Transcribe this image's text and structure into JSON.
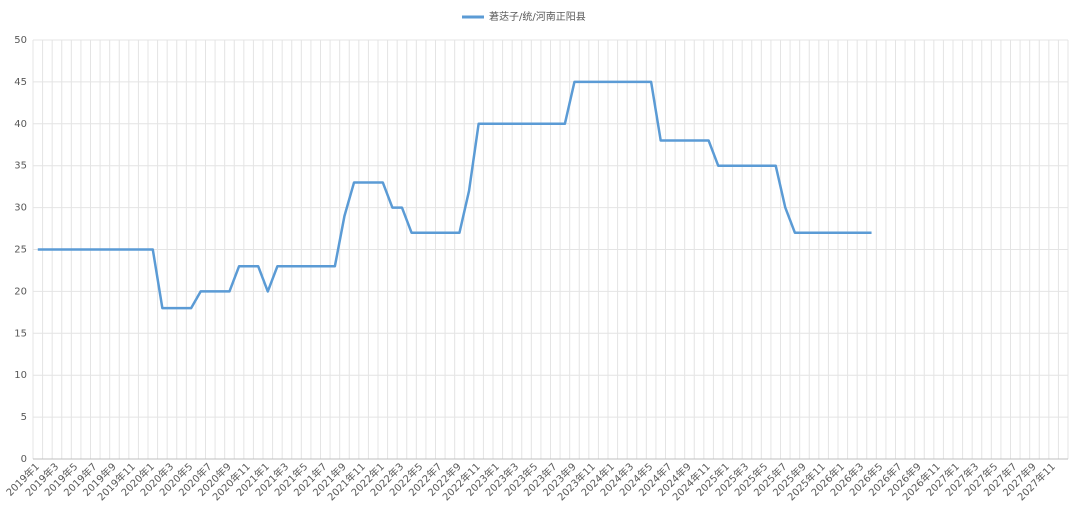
{
  "chart_data": {
    "type": "line",
    "categories": [
      "2019年1",
      null,
      "2019年3",
      null,
      "2019年5",
      null,
      "2019年7",
      null,
      "2019年9",
      null,
      "2019年11",
      null,
      "2020年1",
      null,
      "2020年3",
      null,
      "2020年5",
      null,
      "2020年7",
      null,
      "2020年9",
      null,
      "2020年11",
      null,
      "2021年1",
      null,
      "2021年3",
      null,
      "2021年5",
      null,
      "2021年7",
      null,
      "2021年9",
      null,
      "2021年11",
      null,
      "2022年1",
      null,
      "2022年3",
      null,
      "2022年5",
      null,
      "2022年7",
      null,
      "2022年9",
      null,
      "2022年11",
      null,
      "2023年1",
      null,
      "2023年3",
      null,
      "2023年5",
      null,
      "2023年7",
      null,
      "2023年9",
      null,
      "2023年11",
      null,
      "2024年1",
      null,
      "2024年3",
      null,
      "2024年5",
      null,
      "2024年7",
      null,
      "2024年9",
      null,
      "2024年11",
      null,
      "2025年1",
      null,
      "2025年3",
      null,
      "2025年5",
      null,
      "2025年7",
      null,
      "2025年9",
      null,
      "2025年11",
      null,
      "2026年1",
      null,
      "2026年3",
      null,
      "2026年5",
      null,
      "2026年7",
      null,
      "2026年9",
      null,
      "2026年11",
      null,
      "2027年1",
      null,
      "2027年3",
      null,
      "2027年5",
      null,
      "2027年7",
      null,
      "2027年9",
      null,
      "2027年11",
      null
    ],
    "series": [
      {
        "name": "莙荙子/统/河南正阳县",
        "color": "#5b9bd5",
        "values": [
          25,
          25,
          25,
          25,
          25,
          25,
          25,
          25,
          25,
          25,
          25,
          25,
          25,
          18,
          18,
          18,
          18,
          20,
          20,
          20,
          20,
          23,
          23,
          23,
          20,
          23,
          23,
          23,
          23,
          23,
          23,
          23,
          29,
          33,
          33,
          33,
          33,
          30,
          30,
          27,
          27,
          27,
          27,
          27,
          27,
          32,
          40,
          40,
          40,
          40,
          40,
          40,
          40,
          40,
          40,
          40,
          45,
          45,
          45,
          45,
          45,
          45,
          45,
          45,
          45,
          38,
          38,
          38,
          38,
          38,
          38,
          35,
          35,
          35,
          35,
          35,
          35,
          35,
          30,
          27,
          27,
          27,
          27,
          27,
          27,
          27,
          27,
          27,
          null,
          null,
          null,
          null,
          null,
          null,
          null,
          null,
          null,
          null,
          null,
          null,
          null,
          null,
          null,
          null,
          null,
          null,
          null,
          null
        ]
      }
    ],
    "ylim": [
      0,
      50
    ],
    "yticks": [
      0,
      5,
      10,
      15,
      20,
      25,
      30,
      35,
      40,
      45,
      50
    ],
    "grid": true,
    "legend": "top"
  }
}
